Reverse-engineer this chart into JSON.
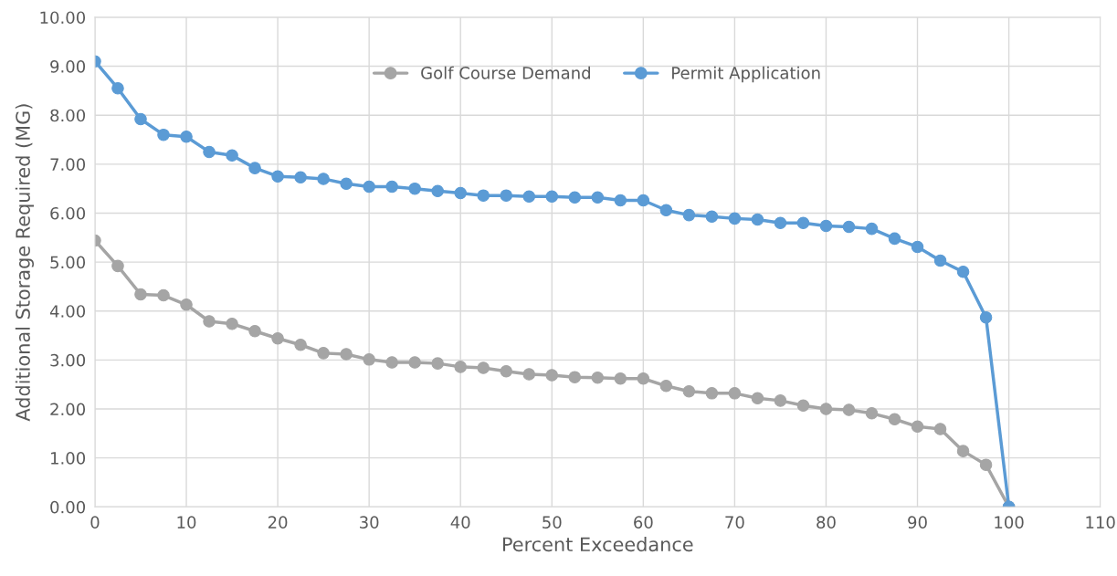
{
  "chart_data": {
    "type": "line",
    "xlabel": "Percent Exceedance",
    "ylabel": "Additional Storage Required (MG)",
    "x": [
      0,
      2.5,
      5,
      7.5,
      10,
      12.5,
      15,
      17.5,
      20,
      22.5,
      25,
      27.5,
      30,
      32.5,
      35,
      37.5,
      40,
      42.5,
      45,
      47.5,
      50,
      52.5,
      55,
      57.5,
      60,
      62.5,
      65,
      67.5,
      70,
      72.5,
      75,
      77.5,
      80,
      82.5,
      85,
      87.5,
      90,
      92.5,
      95,
      97.5,
      100
    ],
    "series": [
      {
        "name": "Golf Course Demand",
        "color": "#a5a5a5",
        "values": [
          5.44,
          4.92,
          4.34,
          4.32,
          4.13,
          3.79,
          3.74,
          3.59,
          3.44,
          3.31,
          3.14,
          3.12,
          3.01,
          2.95,
          2.95,
          2.93,
          2.86,
          2.84,
          2.77,
          2.71,
          2.69,
          2.65,
          2.64,
          2.62,
          2.62,
          2.47,
          2.36,
          2.32,
          2.32,
          2.22,
          2.17,
          2.07,
          2.0,
          1.98,
          1.91,
          1.79,
          1.64,
          1.59,
          1.14,
          0.86,
          0.0
        ]
      },
      {
        "name": "Permit Application",
        "color": "#5b9bd5",
        "values": [
          9.1,
          8.55,
          7.92,
          7.6,
          7.56,
          7.25,
          7.18,
          6.92,
          6.75,
          6.73,
          6.7,
          6.6,
          6.54,
          6.54,
          6.5,
          6.45,
          6.41,
          6.36,
          6.36,
          6.34,
          6.34,
          6.32,
          6.32,
          6.26,
          6.26,
          6.06,
          5.96,
          5.93,
          5.89,
          5.87,
          5.8,
          5.8,
          5.74,
          5.72,
          5.68,
          5.48,
          5.31,
          5.03,
          4.8,
          3.87,
          0.0
        ]
      }
    ],
    "xlim": [
      0,
      110
    ],
    "xticks": [
      0,
      10,
      20,
      30,
      40,
      50,
      60,
      70,
      80,
      90,
      100,
      110
    ],
    "ylim": [
      0,
      10
    ],
    "yticks": [
      {
        "value": 0,
        "label": "0.00"
      },
      {
        "value": 1,
        "label": "1.00"
      },
      {
        "value": 2,
        "label": "2.00"
      },
      {
        "value": 3,
        "label": "3.00"
      },
      {
        "value": 4,
        "label": "4.00"
      },
      {
        "value": 5,
        "label": "5.00"
      },
      {
        "value": 6,
        "label": "6.00"
      },
      {
        "value": 7,
        "label": "7.00"
      },
      {
        "value": 8,
        "label": "8.00"
      },
      {
        "value": 9,
        "label": "9.00"
      },
      {
        "value": 10,
        "label": "10.00"
      }
    ],
    "grid": true,
    "legend": "top",
    "marker": "circle",
    "line_style": "solid"
  }
}
